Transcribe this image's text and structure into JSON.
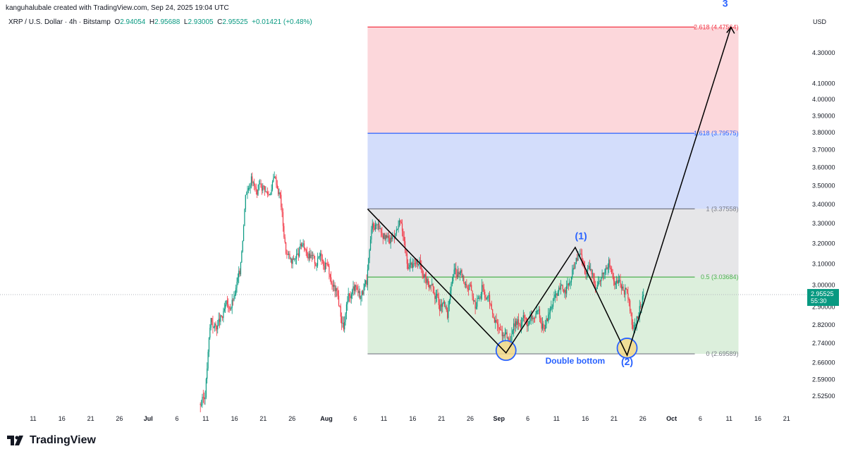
{
  "header": {
    "credit": "kanguhalubale created with TradingView.com, Sep 24, 2025 19:04 UTC",
    "symbol": "XRP / U.S. Dollar · 4h · Bitstamp",
    "o_label": "O",
    "o": "2.94054",
    "h_label": "H",
    "h": "2.95688",
    "l_label": "L",
    "l": "2.93005",
    "c_label": "C",
    "c": "2.95525",
    "change": "+0.01421 (+0.48%)"
  },
  "currency": "USD",
  "brand": "TradingView",
  "chart_data": {
    "type": "candlestick",
    "scale": "log",
    "ylim": [
      2.5,
      4.5
    ],
    "price_ticks": [
      4.3,
      4.1,
      4.0,
      3.9,
      3.8,
      3.7,
      3.6,
      3.5,
      3.4,
      3.3,
      3.2,
      3.1,
      3.0,
      2.9,
      2.82,
      2.74,
      2.66,
      2.59,
      2.525
    ],
    "price_tick_labels": [
      "4.30000",
      "4.10000",
      "4.00000",
      "3.90000",
      "3.80000",
      "3.70000",
      "3.60000",
      "3.50000",
      "3.40000",
      "3.30000",
      "3.20000",
      "3.10000",
      "3.00000",
      "2.90000",
      "2.82000",
      "2.74000",
      "2.66000",
      "2.59000",
      "2.52500"
    ],
    "x_ticks": [
      "11",
      "16",
      "21",
      "26",
      "Jul",
      "6",
      "11",
      "16",
      "21",
      "26",
      "Aug",
      "6",
      "11",
      "16",
      "21",
      "26",
      "Sep",
      "6",
      "11",
      "16",
      "21",
      "26",
      "Oct",
      "6",
      "11",
      "16",
      "21"
    ],
    "start_date": "2025-07-10",
    "daily_close": [
      2.52,
      2.85,
      2.8,
      2.85,
      2.9,
      2.95,
      3.05,
      3.45,
      3.55,
      3.45,
      3.5,
      3.45,
      3.55,
      3.45,
      3.15,
      3.1,
      3.15,
      3.2,
      3.15,
      3.1,
      3.15,
      3.1,
      3.0,
      2.95,
      2.8,
      2.95,
      3.0,
      2.95,
      3.0,
      3.3,
      3.3,
      3.25,
      3.2,
      3.25,
      3.3,
      3.1,
      3.1,
      3.1,
      3.05,
      3.0,
      2.95,
      2.9,
      2.85,
      3.05,
      3.05,
      3.0,
      3.0,
      2.9,
      3.0,
      2.95,
      2.85,
      2.8,
      2.78,
      2.75,
      2.82,
      2.85,
      2.82,
      2.85,
      2.85,
      2.82,
      2.9,
      2.95,
      2.98,
      3.0,
      3.08,
      3.15,
      3.05,
      3.05,
      3.0,
      3.05,
      3.12,
      3.0,
      3.0,
      2.98,
      2.82,
      2.85,
      2.955
    ],
    "last_price": "2.95525",
    "countdown": "55:30",
    "colors": {
      "up": "#089981",
      "down": "#f23645"
    },
    "fib": {
      "from_date": "2025-08-08",
      "to_date": "2025-10-14",
      "levels": [
        {
          "ratio": 2.618,
          "price": 4.47564,
          "label": "2.618 (4.47564)",
          "color": "#f23645",
          "fill": "#fcd7db"
        },
        {
          "ratio": 1.618,
          "price": 3.79575,
          "label": "1.618 (3.79575)",
          "color": "#2962ff",
          "fill": "#d3ddfb"
        },
        {
          "ratio": 1,
          "price": 3.37558,
          "label": "1 (3.37558)",
          "color": "#787b86",
          "fill": "#e6e6e8"
        },
        {
          "ratio": 0.5,
          "price": 3.03684,
          "label": "0.5 (3.03684)",
          "color": "#4caf50",
          "fill": "#dcefdc"
        },
        {
          "ratio": 0,
          "price": 2.69589,
          "label": "0 (2.69589)",
          "color": "#787b86",
          "fill": ""
        }
      ]
    },
    "path": [
      {
        "date": "2025-08-08",
        "price": 3.375
      },
      {
        "date": "2025-09-01",
        "price": 2.7
      },
      {
        "date": "2025-09-13",
        "price": 3.18
      },
      {
        "date": "2025-09-22",
        "price": 2.69
      },
      {
        "date": "2025-10-10",
        "price": 4.475
      }
    ],
    "annotations": [
      {
        "text": "(1)",
        "date": "2025-09-14",
        "price": 3.22
      },
      {
        "text": "(2)",
        "date": "2025-09-22",
        "price": 2.65
      },
      {
        "text": "3",
        "date": "2025-10-09",
        "price": 4.62
      },
      {
        "text": "Double bottom",
        "date": "2025-09-13",
        "price": 2.655
      }
    ],
    "circles": [
      {
        "date": "2025-09-01",
        "price": 2.71
      },
      {
        "date": "2025-09-22",
        "price": 2.72
      }
    ]
  }
}
